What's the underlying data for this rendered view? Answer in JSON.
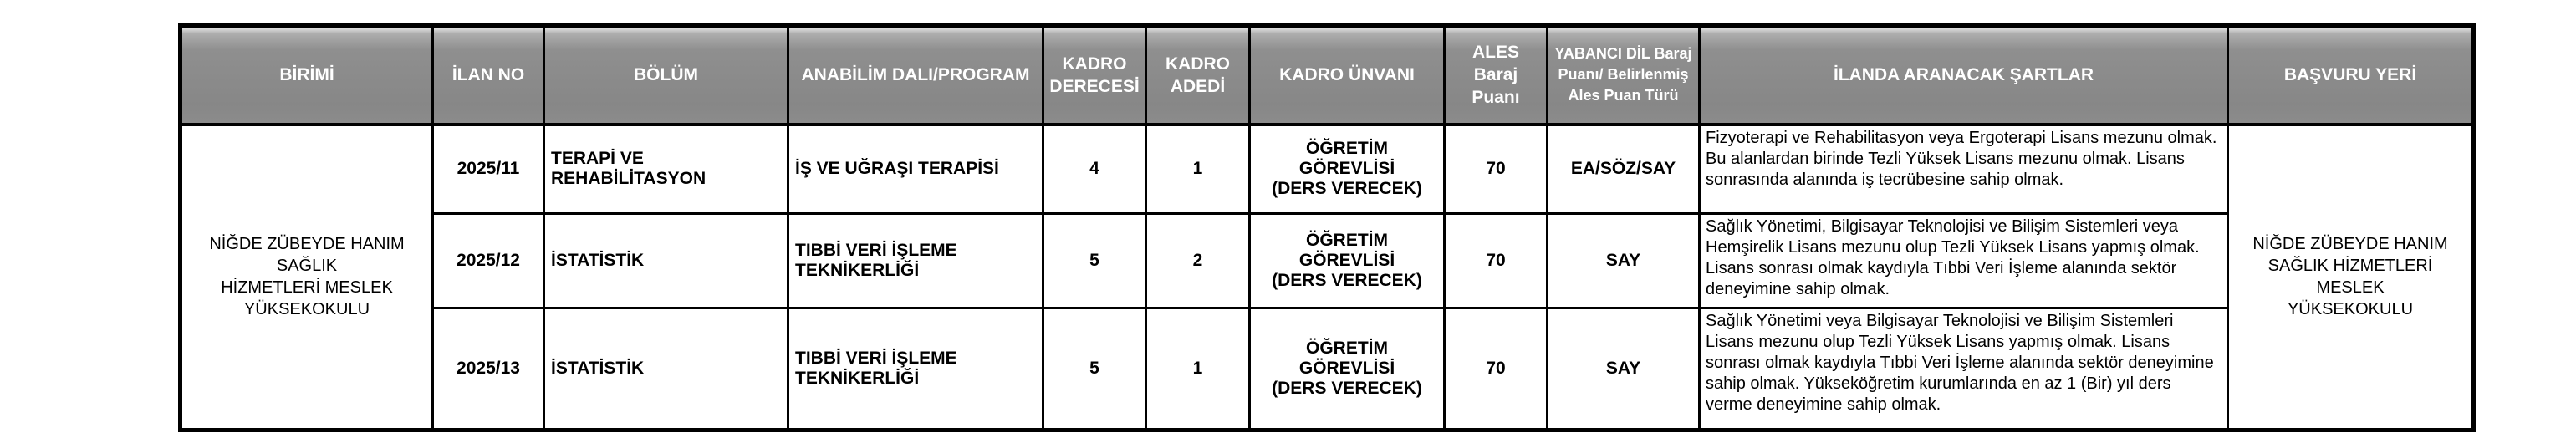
{
  "table": {
    "headers": {
      "birimi": "BİRİMİ",
      "ilan_no": "İLAN NO",
      "bolum": "BÖLÜM",
      "anabilim": "ANABİLİM DALI/PROGRAM",
      "kadro_derecesi": "KADRO\nDERECESİ",
      "kadro_adedi": "KADRO\nADEDİ",
      "kadro_unvani": "KADRO ÜNVANI",
      "ales": "ALES\nBaraj Puanı",
      "yabanci_dil": "YABANCI DİL Baraj\nPuanı/ Belirlenmiş\nAles Puan Türü",
      "sartlar": "İLANDA ARANACAK ŞARTLAR",
      "basvuru_yeri": "BAŞVURU YERİ"
    },
    "birimi": "NİĞDE ZÜBEYDE HANIM SAĞLIK\nHİZMETLERİ MESLEK\nYÜKSEKOKULU",
    "basvuru_yeri": "NİĞDE ZÜBEYDE HANIM\nSAĞLIK HİZMETLERİ MESLEK\nYÜKSEKOKULU",
    "rows": [
      {
        "ilan_no": "2025/11",
        "bolum": "TERAPİ VE REHABİLİTASYON",
        "anabilim": "İŞ VE UĞRAŞI TERAPİSİ",
        "kadro_derecesi": "4",
        "kadro_adedi": "1",
        "kadro_unvani": "ÖĞRETİM GÖREVLİSİ\n(DERS VERECEK)",
        "ales": "70",
        "yabanci_dil": "EA/SÖZ/SAY",
        "sartlar": "Fizyoterapi ve Rehabilitasyon veya Ergoterapi Lisans mezunu olmak. Bu alanlardan birinde Tezli Yüksek Lisans mezunu olmak. Lisans sonrasında alanında iş tecrübesine sahip olmak."
      },
      {
        "ilan_no": "2025/12",
        "bolum": "İSTATİSTİK",
        "anabilim": "TIBBİ VERİ İŞLEME\nTEKNİKERLİĞİ",
        "kadro_derecesi": "5",
        "kadro_adedi": "2",
        "kadro_unvani": "ÖĞRETİM GÖREVLİSİ\n(DERS VERECEK)",
        "ales": "70",
        "yabanci_dil": "SAY",
        "sartlar": "Sağlık Yönetimi, Bilgisayar Teknolojisi ve Bilişim Sistemleri veya Hemşirelik Lisans mezunu olup Tezli Yüksek Lisans yapmış olmak. Lisans sonrası olmak kaydıyla Tıbbi Veri İşleme alanında sektör deneyimine sahip olmak."
      },
      {
        "ilan_no": "2025/13",
        "bolum": "İSTATİSTİK",
        "anabilim": "TIBBİ VERİ İŞLEME\nTEKNİKERLİĞİ",
        "kadro_derecesi": "5",
        "kadro_adedi": "1",
        "kadro_unvani": "ÖĞRETİM GÖREVLİSİ\n(DERS VERECEK)",
        "ales": "70",
        "yabanci_dil": "SAY",
        "sartlar": "Sağlık Yönetimi veya Bilgisayar Teknolojisi ve Bilişim Sistemleri Lisans mezunu olup Tezli Yüksek Lisans yapmış olmak. Lisans sonrası olmak kaydıyla Tıbbi Veri İşleme alanında sektör deneyimine sahip olmak. Yükseköğretim kurumlarında en az 1 (Bir) yıl ders verme deneyimine sahip olmak."
      }
    ]
  }
}
